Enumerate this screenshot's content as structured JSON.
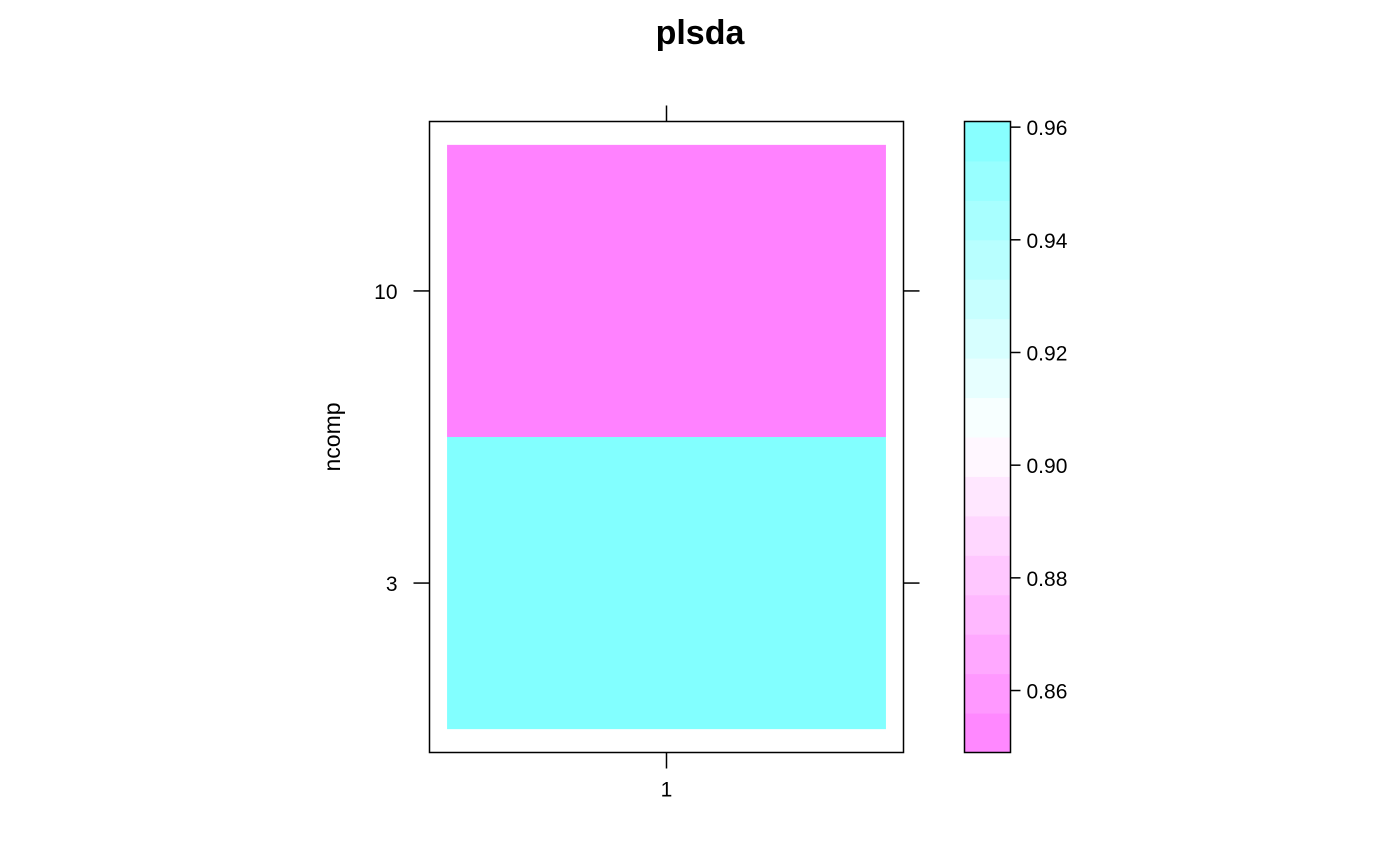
{
  "chart_data": {
    "type": "heatmap",
    "title": "plsda",
    "xlabel": "",
    "ylabel": "ncomp",
    "x_categories": [
      "1"
    ],
    "y_categories": [
      "3",
      "10"
    ],
    "cells": [
      {
        "x": "1",
        "y": "3",
        "value": 0.96
      },
      {
        "x": "1",
        "y": "10",
        "value": 0.85
      }
    ],
    "colorbar": {
      "range": [
        0.849,
        0.961
      ],
      "ticks": [
        0.86,
        0.88,
        0.9,
        0.92,
        0.94,
        0.96
      ],
      "tick_labels": [
        "0.86",
        "0.88",
        "0.90",
        "0.92",
        "0.94",
        "0.96"
      ],
      "low_color": "#FF80FF",
      "mid_color": "#FFFFFF",
      "high_color": "#80FFFF",
      "bands": 16
    },
    "grid": false,
    "legend_position": "right"
  }
}
